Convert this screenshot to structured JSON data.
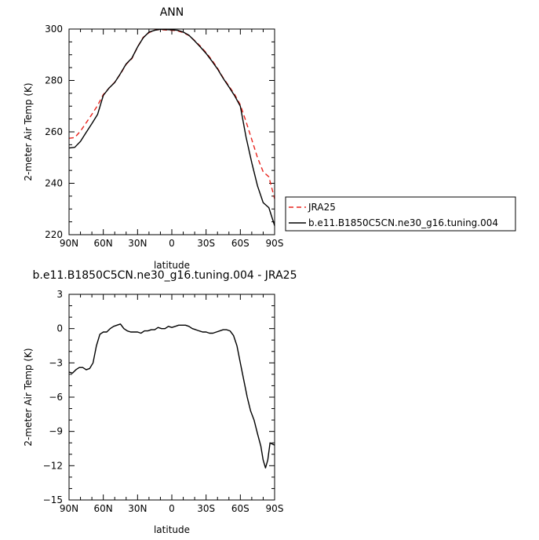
{
  "chart_data": [
    {
      "type": "line",
      "title": "ANN",
      "xlabel": "latitude",
      "ylabel": "2-meter Air Temp (K)",
      "xlim": [
        90,
        -90
      ],
      "ylim": [
        220,
        300
      ],
      "x_ticks": [
        90,
        60,
        30,
        0,
        -30,
        -60,
        -90
      ],
      "x_tick_labels": [
        "90N",
        "60N",
        "30N",
        "0",
        "30S",
        "60S",
        "90S"
      ],
      "y_ticks": [
        220,
        240,
        260,
        280,
        300
      ],
      "y_tick_labels": [
        "220",
        "240",
        "260",
        "280",
        "300"
      ],
      "legend": {
        "placement": "right",
        "entries": [
          "JRA25",
          "b.e11.B1850C5CN.ne30_g16.tuning.004"
        ]
      },
      "x": [
        90,
        85,
        80,
        75,
        70,
        65,
        60,
        55,
        50,
        45,
        40,
        35,
        30,
        25,
        20,
        15,
        10,
        5,
        0,
        -5,
        -10,
        -15,
        -20,
        -25,
        -30,
        -35,
        -40,
        -45,
        -50,
        -55,
        -60,
        -65,
        -70,
        -75,
        -80,
        -85,
        -90
      ],
      "series": [
        {
          "name": "JRA25",
          "color": "#e8231c",
          "dash": "dashed",
          "values": [
            257.5,
            257.8,
            260.3,
            263.5,
            266.8,
            270.3,
            274.5,
            277.0,
            279.3,
            282.5,
            286.3,
            288.5,
            293.0,
            296.8,
            298.6,
            299.6,
            299.8,
            299.6,
            299.5,
            299.3,
            298.6,
            297.5,
            295.5,
            293.3,
            290.8,
            288.0,
            284.8,
            281.0,
            277.8,
            274.5,
            270.5,
            264.0,
            257.0,
            250.0,
            244.5,
            242.5,
            234.0
          ]
        },
        {
          "name": "b.e11.B1850C5CN.ne30_g16.tuning.004",
          "color": "#000000",
          "dash": "solid",
          "values": [
            253.7,
            254.0,
            256.3,
            259.8,
            263.2,
            266.8,
            274.2,
            277.0,
            279.2,
            282.7,
            286.4,
            288.7,
            293.0,
            296.6,
            298.8,
            299.5,
            299.9,
            299.8,
            299.7,
            299.5,
            298.8,
            297.6,
            295.4,
            293.0,
            290.5,
            287.6,
            284.5,
            280.8,
            277.5,
            274.0,
            270.0,
            258.0,
            248.0,
            239.0,
            232.5,
            230.5,
            223.5
          ]
        }
      ]
    },
    {
      "type": "line",
      "title": "b.e11.B1850C5CN.ne30_g16.tuning.004 - JRA25",
      "xlabel": "latitude",
      "ylabel": "2-meter Air Temp (K)",
      "xlim": [
        90,
        -90
      ],
      "ylim": [
        -15,
        3
      ],
      "x_ticks": [
        90,
        60,
        30,
        0,
        -30,
        -60,
        -90
      ],
      "x_tick_labels": [
        "90N",
        "60N",
        "30N",
        "0",
        "30S",
        "60S",
        "90S"
      ],
      "y_ticks": [
        -15,
        -12,
        -9,
        -6,
        -3,
        0,
        3
      ],
      "y_tick_labels": [
        "−15",
        "−12",
        "−9",
        "−6",
        "−3",
        "0",
        "3"
      ],
      "x": [
        90,
        87,
        84,
        81,
        78,
        75,
        72,
        69,
        66,
        63,
        60,
        57,
        54,
        51,
        48,
        45,
        42,
        39,
        36,
        33,
        30,
        27,
        24,
        21,
        18,
        15,
        12,
        9,
        6,
        3,
        0,
        -3,
        -6,
        -9,
        -12,
        -15,
        -18,
        -21,
        -24,
        -27,
        -30,
        -33,
        -36,
        -39,
        -42,
        -45,
        -48,
        -51,
        -54,
        -57,
        -60,
        -63,
        -66,
        -69,
        -72,
        -75,
        -78,
        -80,
        -82,
        -84,
        -86,
        -88,
        -90
      ],
      "series": [
        {
          "name": "",
          "color": "#000000",
          "dash": "solid",
          "values": [
            -3.8,
            -3.9,
            -3.6,
            -3.4,
            -3.4,
            -3.6,
            -3.5,
            -3.0,
            -1.5,
            -0.5,
            -0.3,
            -0.3,
            0.0,
            0.2,
            0.3,
            0.4,
            0.0,
            -0.2,
            -0.3,
            -0.3,
            -0.3,
            -0.4,
            -0.2,
            -0.2,
            -0.1,
            -0.1,
            0.1,
            0.0,
            0.0,
            0.2,
            0.1,
            0.2,
            0.3,
            0.3,
            0.3,
            0.2,
            0.0,
            -0.1,
            -0.2,
            -0.3,
            -0.3,
            -0.4,
            -0.4,
            -0.3,
            -0.2,
            -0.1,
            -0.1,
            -0.2,
            -0.6,
            -1.5,
            -3.0,
            -4.5,
            -6.0,
            -7.2,
            -8.0,
            -9.2,
            -10.3,
            -11.5,
            -12.2,
            -11.5,
            -10.0,
            -10.1,
            -10.2
          ]
        }
      ]
    }
  ]
}
